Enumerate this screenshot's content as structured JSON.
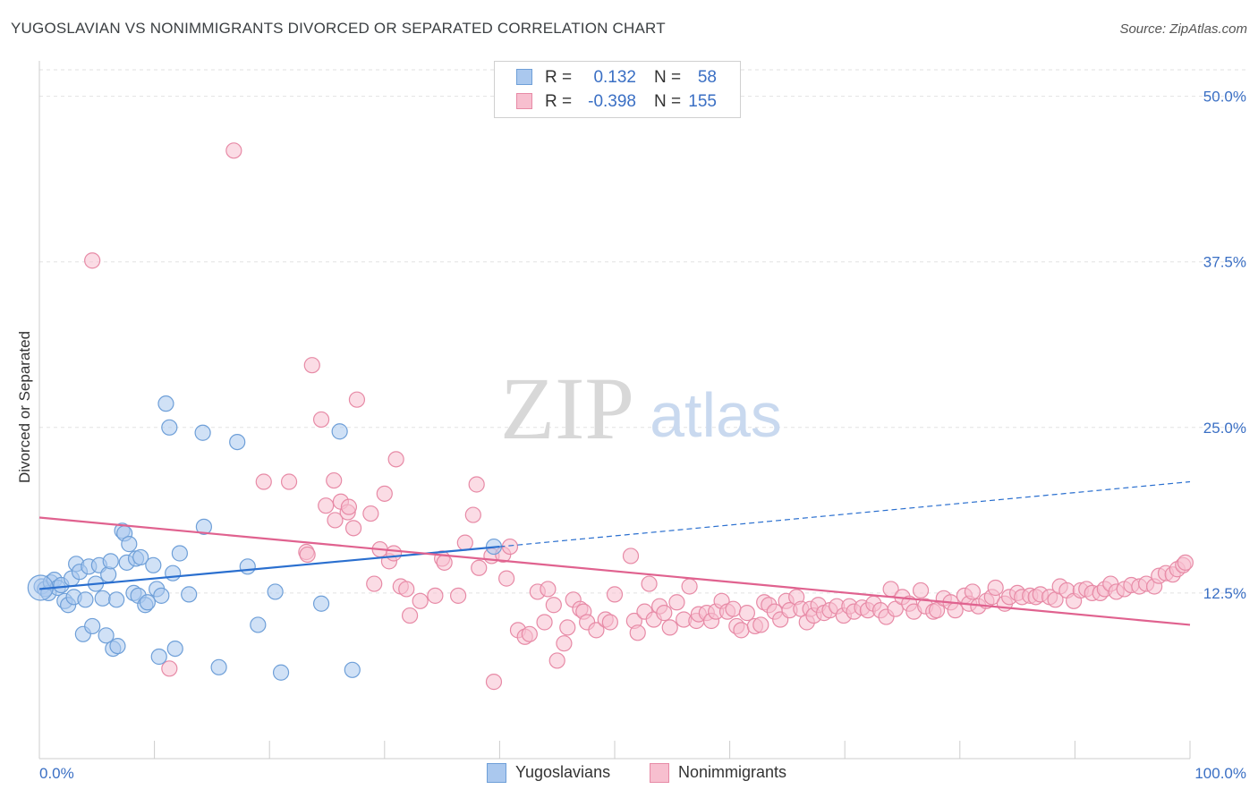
{
  "title": "YUGOSLAVIAN VS NONIMMIGRANTS DIVORCED OR SEPARATED CORRELATION CHART",
  "source": "Source: ZipAtlas.com",
  "watermark": {
    "zip": "ZIP",
    "atlas": "atlas"
  },
  "legend_top": [
    {
      "r_label": "R =",
      "r_value": "0.132",
      "n_label": "N =",
      "n_value": "58"
    },
    {
      "r_label": "R =",
      "r_value": "-0.398",
      "n_label": "N =",
      "n_value": "155"
    }
  ],
  "legend_bottom": [
    "Yugoslavians",
    "Nonimmigrants"
  ],
  "colors": {
    "blue_fill": "#aac8ee",
    "blue_stroke": "#6e9fd8",
    "blue_line": "#2a6fcf",
    "pink_fill": "#f7bfcf",
    "pink_stroke": "#e78aa6",
    "pink_line": "#e0628f",
    "tick_label": "#3a6fc4",
    "grid": "#e2e2e2"
  },
  "chart_data": {
    "type": "scatter",
    "title": "YUGOSLAVIAN VS NONIMMIGRANTS DIVORCED OR SEPARATED CORRELATION CHART",
    "xlabel": "",
    "ylabel": "Divorced or Separated",
    "xlim": [
      0,
      100
    ],
    "ylim": [
      0,
      52
    ],
    "x_tick_labels": [
      "0.0%",
      "100.0%"
    ],
    "y_ticks": [
      12.5,
      25.0,
      37.5,
      50.0
    ],
    "y_tick_labels": [
      "12.5%",
      "25.0%",
      "37.5%",
      "50.0%"
    ],
    "grid": true,
    "legend_position": "top-center",
    "series": [
      {
        "name": "Yugoslavians",
        "points": [
          [
            0.2,
            13.0
          ],
          [
            0.5,
            12.8
          ],
          [
            0.8,
            12.5
          ],
          [
            1.0,
            13.3
          ],
          [
            1.3,
            13.5
          ],
          [
            1.6,
            12.9
          ],
          [
            1.9,
            13.1
          ],
          [
            2.2,
            11.9
          ],
          [
            2.5,
            11.6
          ],
          [
            2.8,
            13.6
          ],
          [
            3.0,
            12.2
          ],
          [
            3.2,
            14.7
          ],
          [
            3.5,
            14.1
          ],
          [
            3.8,
            9.4
          ],
          [
            4.0,
            12.0
          ],
          [
            4.3,
            14.5
          ],
          [
            4.6,
            10.0
          ],
          [
            4.9,
            13.2
          ],
          [
            5.2,
            14.6
          ],
          [
            5.5,
            12.1
          ],
          [
            5.8,
            9.3
          ],
          [
            6.0,
            13.9
          ],
          [
            6.2,
            14.9
          ],
          [
            6.4,
            8.3
          ],
          [
            6.7,
            12.0
          ],
          [
            6.8,
            8.5
          ],
          [
            7.2,
            17.2
          ],
          [
            7.4,
            17.0
          ],
          [
            7.6,
            14.8
          ],
          [
            7.8,
            16.2
          ],
          [
            8.2,
            12.5
          ],
          [
            8.4,
            15.1
          ],
          [
            8.6,
            12.3
          ],
          [
            8.8,
            15.2
          ],
          [
            9.2,
            11.6
          ],
          [
            9.4,
            11.8
          ],
          [
            9.9,
            14.6
          ],
          [
            10.2,
            12.8
          ],
          [
            10.4,
            7.7
          ],
          [
            10.6,
            12.3
          ],
          [
            11.0,
            26.8
          ],
          [
            11.3,
            25.0
          ],
          [
            11.6,
            14.0
          ],
          [
            11.8,
            8.3
          ],
          [
            12.2,
            15.5
          ],
          [
            13.0,
            12.4
          ],
          [
            14.2,
            24.6
          ],
          [
            14.3,
            17.5
          ],
          [
            15.6,
            6.9
          ],
          [
            17.2,
            23.9
          ],
          [
            18.1,
            14.5
          ],
          [
            19.0,
            10.1
          ],
          [
            20.5,
            12.6
          ],
          [
            21.0,
            6.5
          ],
          [
            24.5,
            11.7
          ],
          [
            26.1,
            24.7
          ],
          [
            27.2,
            6.7
          ],
          [
            39.5,
            16.0
          ]
        ]
      },
      {
        "name": "Nonimmigrants",
        "points": [
          [
            4.6,
            37.6
          ],
          [
            11.3,
            6.8
          ],
          [
            16.9,
            45.9
          ],
          [
            19.5,
            20.9
          ],
          [
            21.7,
            20.9
          ],
          [
            23.2,
            15.6
          ],
          [
            23.3,
            15.4
          ],
          [
            23.7,
            29.7
          ],
          [
            24.5,
            25.6
          ],
          [
            24.9,
            19.1
          ],
          [
            25.6,
            21.0
          ],
          [
            25.7,
            18.0
          ],
          [
            26.2,
            19.4
          ],
          [
            26.8,
            18.6
          ],
          [
            26.9,
            19.0
          ],
          [
            27.3,
            17.4
          ],
          [
            27.6,
            27.1
          ],
          [
            28.8,
            18.5
          ],
          [
            29.1,
            13.2
          ],
          [
            29.6,
            15.8
          ],
          [
            30.0,
            20.0
          ],
          [
            30.4,
            14.9
          ],
          [
            30.8,
            15.5
          ],
          [
            31.0,
            22.6
          ],
          [
            31.4,
            13.0
          ],
          [
            31.9,
            12.8
          ],
          [
            32.2,
            10.8
          ],
          [
            33.1,
            11.9
          ],
          [
            34.4,
            12.3
          ],
          [
            35.0,
            15.1
          ],
          [
            35.2,
            14.8
          ],
          [
            36.4,
            12.3
          ],
          [
            37.0,
            16.3
          ],
          [
            37.7,
            18.4
          ],
          [
            38.0,
            20.7
          ],
          [
            38.2,
            14.4
          ],
          [
            39.3,
            15.3
          ],
          [
            39.5,
            5.8
          ],
          [
            40.3,
            15.4
          ],
          [
            40.6,
            13.6
          ],
          [
            40.9,
            16.0
          ],
          [
            41.6,
            9.7
          ],
          [
            42.2,
            9.2
          ],
          [
            42.6,
            9.4
          ],
          [
            43.3,
            12.6
          ],
          [
            43.9,
            10.3
          ],
          [
            44.2,
            12.8
          ],
          [
            44.7,
            11.6
          ],
          [
            45.0,
            7.4
          ],
          [
            45.6,
            8.7
          ],
          [
            45.9,
            9.9
          ],
          [
            46.4,
            12.0
          ],
          [
            47.0,
            11.3
          ],
          [
            47.3,
            11.1
          ],
          [
            47.6,
            10.3
          ],
          [
            48.4,
            9.7
          ],
          [
            49.2,
            10.5
          ],
          [
            49.6,
            10.3
          ],
          [
            50.0,
            12.4
          ],
          [
            51.4,
            15.3
          ],
          [
            51.7,
            10.4
          ],
          [
            52.0,
            9.5
          ],
          [
            52.6,
            11.1
          ],
          [
            53.0,
            13.2
          ],
          [
            53.4,
            10.5
          ],
          [
            53.9,
            11.5
          ],
          [
            54.3,
            11.0
          ],
          [
            54.8,
            9.9
          ],
          [
            55.4,
            11.8
          ],
          [
            56.0,
            10.5
          ],
          [
            56.5,
            13.0
          ],
          [
            57.1,
            10.4
          ],
          [
            57.3,
            10.9
          ],
          [
            58.0,
            11.0
          ],
          [
            58.4,
            10.4
          ],
          [
            58.8,
            11.1
          ],
          [
            59.3,
            11.9
          ],
          [
            59.8,
            11.1
          ],
          [
            60.3,
            11.3
          ],
          [
            60.6,
            10.0
          ],
          [
            61.0,
            9.7
          ],
          [
            61.5,
            11.0
          ],
          [
            62.2,
            10.0
          ],
          [
            62.7,
            10.1
          ],
          [
            63.0,
            11.8
          ],
          [
            63.4,
            11.6
          ],
          [
            63.9,
            11.1
          ],
          [
            64.4,
            10.5
          ],
          [
            64.9,
            11.9
          ],
          [
            65.2,
            11.2
          ],
          [
            65.8,
            12.2
          ],
          [
            66.2,
            11.3
          ],
          [
            66.7,
            10.3
          ],
          [
            67.0,
            11.3
          ],
          [
            67.3,
            10.8
          ],
          [
            67.7,
            11.6
          ],
          [
            68.2,
            11.0
          ],
          [
            68.7,
            11.2
          ],
          [
            69.3,
            11.5
          ],
          [
            69.9,
            10.8
          ],
          [
            70.4,
            11.5
          ],
          [
            70.8,
            11.1
          ],
          [
            71.5,
            11.4
          ],
          [
            72.0,
            11.2
          ],
          [
            72.5,
            11.7
          ],
          [
            73.1,
            11.2
          ],
          [
            73.6,
            10.7
          ],
          [
            74.0,
            12.8
          ],
          [
            74.4,
            11.3
          ],
          [
            75.0,
            12.2
          ],
          [
            75.6,
            11.7
          ],
          [
            76.0,
            11.1
          ],
          [
            76.6,
            12.7
          ],
          [
            77.0,
            11.5
          ],
          [
            77.7,
            11.1
          ],
          [
            78.0,
            11.2
          ],
          [
            78.6,
            12.1
          ],
          [
            79.2,
            11.8
          ],
          [
            79.6,
            11.2
          ],
          [
            80.4,
            12.3
          ],
          [
            80.8,
            11.7
          ],
          [
            81.1,
            12.6
          ],
          [
            81.6,
            11.5
          ],
          [
            82.3,
            11.9
          ],
          [
            82.8,
            12.2
          ],
          [
            83.1,
            12.9
          ],
          [
            83.9,
            11.7
          ],
          [
            84.3,
            12.2
          ],
          [
            85.0,
            12.5
          ],
          [
            85.4,
            12.2
          ],
          [
            86.1,
            12.3
          ],
          [
            86.6,
            12.2
          ],
          [
            87.0,
            12.4
          ],
          [
            87.8,
            12.2
          ],
          [
            88.3,
            12.0
          ],
          [
            88.7,
            13.0
          ],
          [
            89.3,
            12.7
          ],
          [
            89.9,
            11.9
          ],
          [
            90.5,
            12.7
          ],
          [
            91.0,
            12.8
          ],
          [
            91.5,
            12.5
          ],
          [
            92.2,
            12.5
          ],
          [
            92.6,
            12.8
          ],
          [
            93.1,
            13.2
          ],
          [
            93.6,
            12.6
          ],
          [
            94.3,
            12.8
          ],
          [
            94.9,
            13.1
          ],
          [
            95.6,
            13.0
          ],
          [
            96.2,
            13.2
          ],
          [
            96.9,
            13.0
          ],
          [
            97.3,
            13.8
          ],
          [
            97.9,
            14.0
          ],
          [
            98.5,
            13.9
          ],
          [
            98.9,
            14.3
          ],
          [
            99.4,
            14.6
          ],
          [
            99.6,
            14.8
          ]
        ]
      }
    ],
    "trend_lines": [
      {
        "series": "Yugoslavians",
        "solid": [
          [
            0,
            12.8
          ],
          [
            40,
            16.0
          ]
        ],
        "dashed": [
          [
            40,
            16.0
          ],
          [
            100,
            20.9
          ]
        ]
      },
      {
        "series": "Nonimmigrants",
        "solid": [
          [
            0,
            18.2
          ],
          [
            100,
            10.1
          ]
        ]
      }
    ]
  }
}
